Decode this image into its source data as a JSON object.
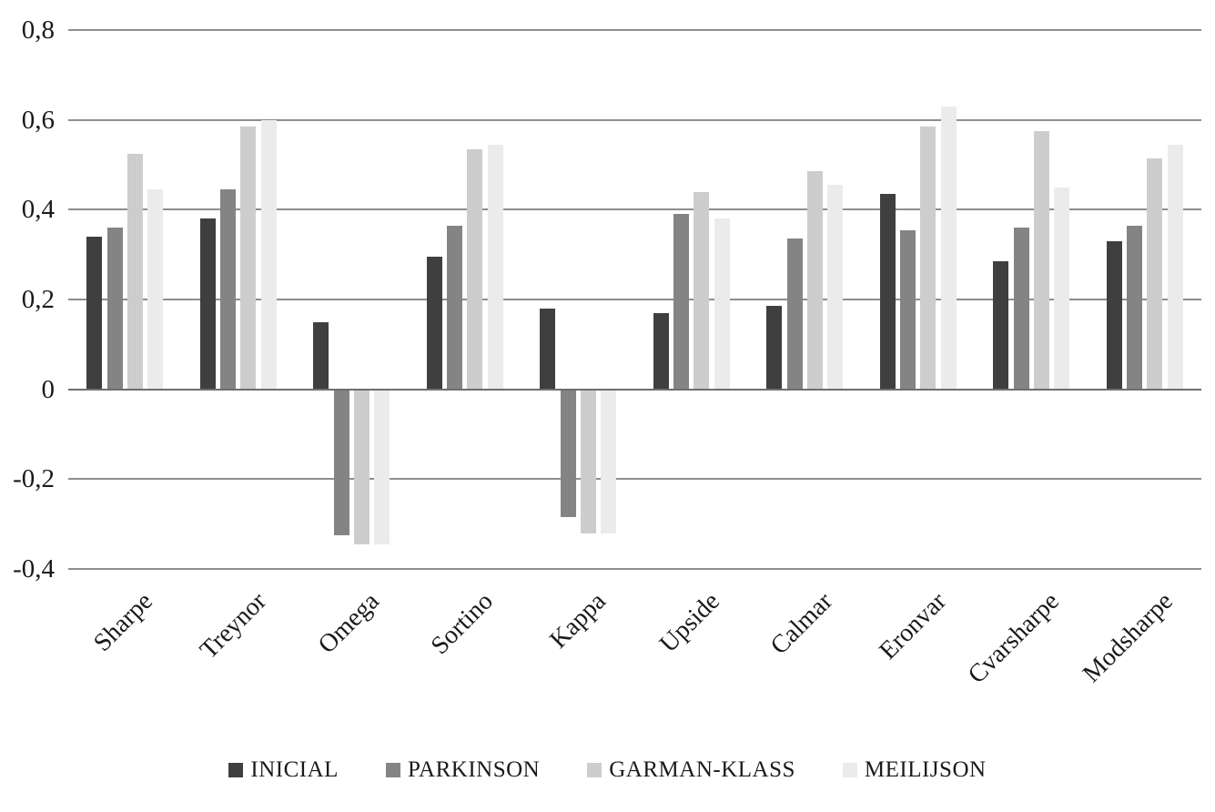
{
  "chart_data": {
    "type": "bar",
    "title": "",
    "xlabel": "",
    "ylabel": "",
    "categories": [
      "Sharpe",
      "Treynor",
      "Omega",
      "Sortino",
      "Kappa",
      "Upside",
      "Calmar",
      "Eronvar",
      "Cvarsharpe",
      "Modsharpe"
    ],
    "series": [
      {
        "name": "INICIAL",
        "color": "#3f3f3f",
        "values": [
          0.34,
          0.38,
          0.15,
          0.295,
          0.18,
          0.17,
          0.185,
          0.435,
          0.285,
          0.33
        ]
      },
      {
        "name": "PARKINSON",
        "color": "#848484",
        "values": [
          0.36,
          0.445,
          -0.325,
          0.365,
          -0.285,
          0.39,
          0.335,
          0.355,
          0.36,
          0.365
        ]
      },
      {
        "name": "GARMAN-KLASS",
        "color": "#cdcdcd",
        "values": [
          0.525,
          0.585,
          -0.345,
          0.535,
          -0.32,
          0.44,
          0.485,
          0.585,
          0.575,
          0.515
        ]
      },
      {
        "name": "MEILIJSON",
        "color": "#ebebeb",
        "values": [
          0.445,
          0.6,
          -0.345,
          0.545,
          -0.32,
          0.38,
          0.455,
          0.63,
          0.45,
          0.545
        ]
      }
    ],
    "ylim": [
      -0.4,
      0.8
    ],
    "yticks": [
      {
        "label": "0,8",
        "value": 0.8
      },
      {
        "label": "0,6",
        "value": 0.6
      },
      {
        "label": "0,4",
        "value": 0.4
      },
      {
        "label": "0,2",
        "value": 0.2
      },
      {
        "label": "0",
        "value": 0.0
      },
      {
        "label": "-0,2",
        "value": -0.2
      },
      {
        "label": "-0,4",
        "value": -0.4
      }
    ],
    "decimal_separator": ",",
    "grid": true,
    "legend_position": "bottom"
  },
  "colors": {
    "background": "#ffffff",
    "gridline": "#8e8e8e",
    "zero_axis": "#6e6e6e",
    "text": "#1a1a1a"
  }
}
